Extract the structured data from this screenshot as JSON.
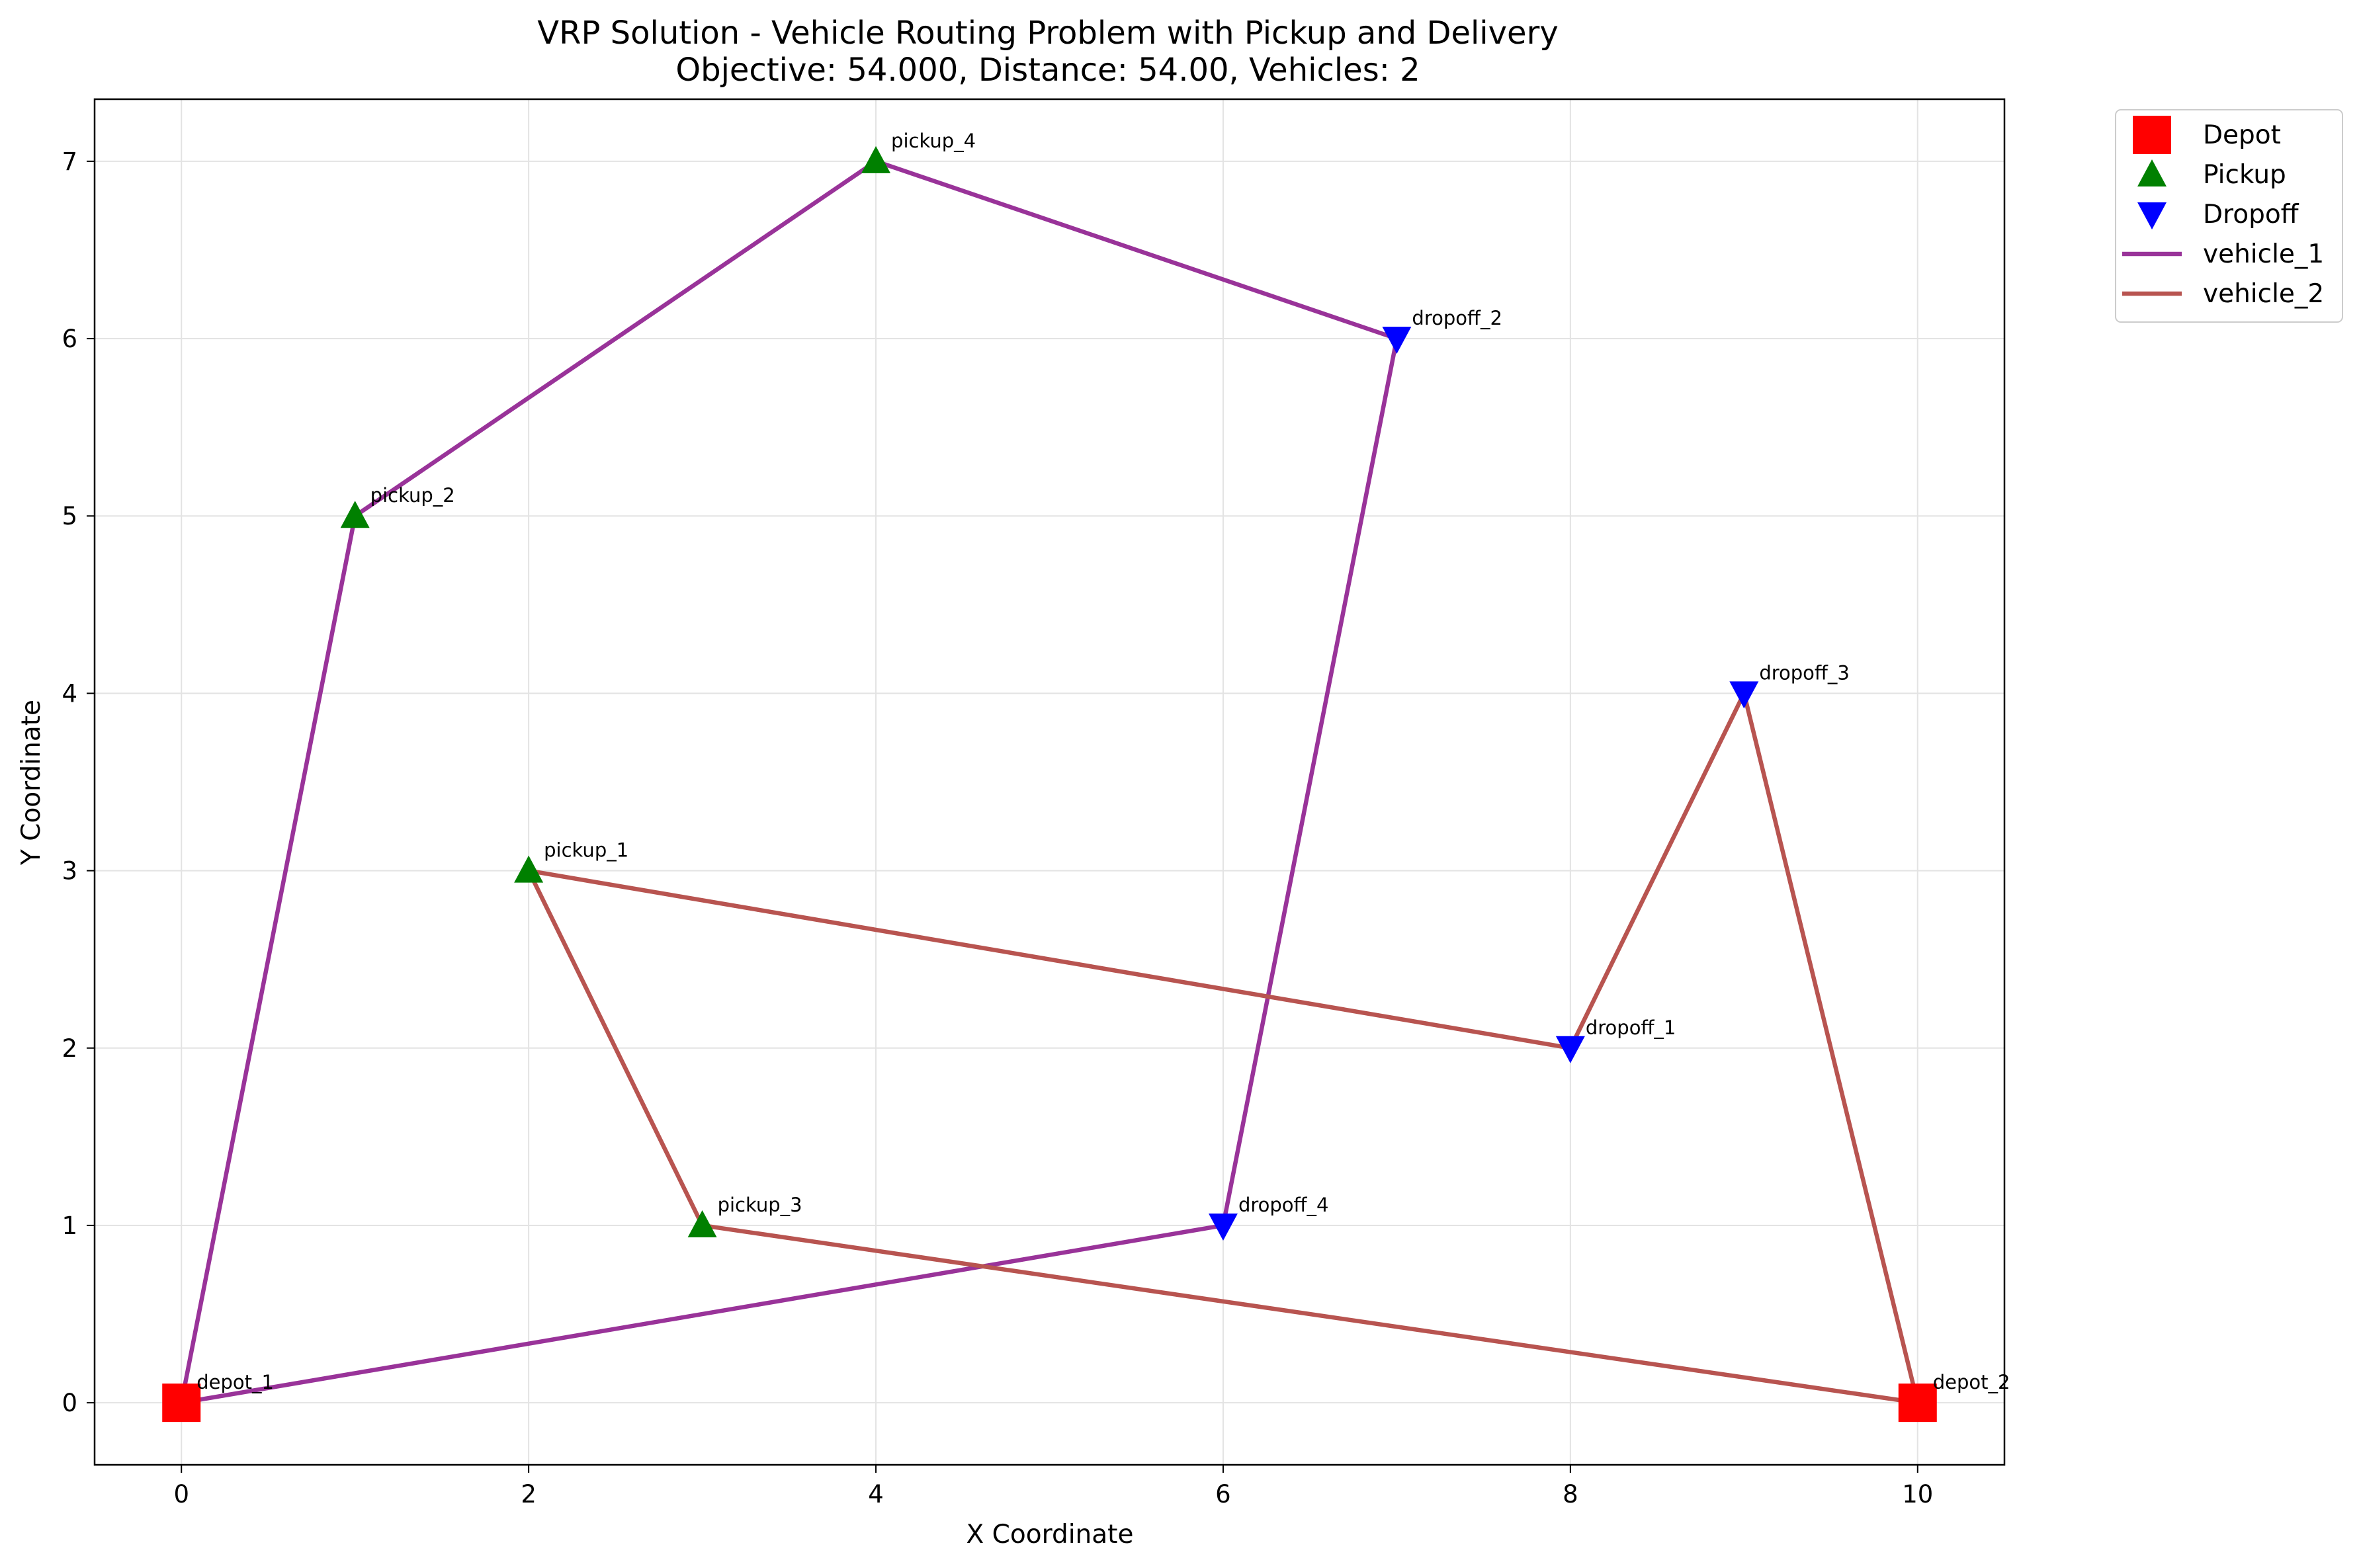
{
  "chart_data": {
    "type": "scatter",
    "title": "VRP Solution - Vehicle Routing Problem with Pickup and Delivery",
    "subtitle": "Objective: 54.000, Distance: 54.00, Vehicles: 2",
    "xlabel": "X Coordinate",
    "ylabel": "Y Coordinate",
    "xlim": [
      -0.5,
      10.5
    ],
    "ylim": [
      -0.35,
      7.35
    ],
    "xticks": [
      0,
      2,
      4,
      6,
      8,
      10
    ],
    "yticks": [
      0,
      1,
      2,
      3,
      4,
      5,
      6,
      7
    ],
    "grid": true,
    "legend_position": "outside top-right",
    "nodes": [
      {
        "id": "depot_1",
        "type": "depot",
        "x": 0,
        "y": 0
      },
      {
        "id": "depot_2",
        "type": "depot",
        "x": 10,
        "y": 0
      },
      {
        "id": "pickup_1",
        "type": "pickup",
        "x": 2,
        "y": 3
      },
      {
        "id": "pickup_2",
        "type": "pickup",
        "x": 1,
        "y": 5
      },
      {
        "id": "pickup_3",
        "type": "pickup",
        "x": 3,
        "y": 1
      },
      {
        "id": "pickup_4",
        "type": "pickup",
        "x": 4,
        "y": 7
      },
      {
        "id": "dropoff_1",
        "type": "dropoff",
        "x": 8,
        "y": 2
      },
      {
        "id": "dropoff_2",
        "type": "dropoff",
        "x": 7,
        "y": 6
      },
      {
        "id": "dropoff_3",
        "type": "dropoff",
        "x": 9,
        "y": 4
      },
      {
        "id": "dropoff_4",
        "type": "dropoff",
        "x": 6,
        "y": 1
      }
    ],
    "routes": [
      {
        "name": "vehicle_1",
        "color": "#993399",
        "points": [
          [
            0,
            0
          ],
          [
            1,
            5
          ],
          [
            4,
            7
          ],
          [
            7,
            6
          ],
          [
            6,
            1
          ],
          [
            0,
            0
          ]
        ]
      },
      {
        "name": "vehicle_2",
        "color": "#b85450",
        "points": [
          [
            10,
            0
          ],
          [
            9,
            4
          ],
          [
            8,
            2
          ],
          [
            2,
            3
          ],
          [
            3,
            1
          ],
          [
            10,
            0
          ]
        ]
      }
    ],
    "legend": [
      {
        "label": "Depot",
        "marker": "square"
      },
      {
        "label": "Pickup",
        "marker": "triangle-up"
      },
      {
        "label": "Dropoff",
        "marker": "triangle-down"
      },
      {
        "label": "vehicle_1",
        "marker": "line-vehicle_1"
      },
      {
        "label": "vehicle_2",
        "marker": "line-vehicle_2"
      }
    ],
    "colors": {
      "depot": "#ff0000",
      "pickup": "#008000",
      "dropoff": "#0000ff"
    }
  }
}
